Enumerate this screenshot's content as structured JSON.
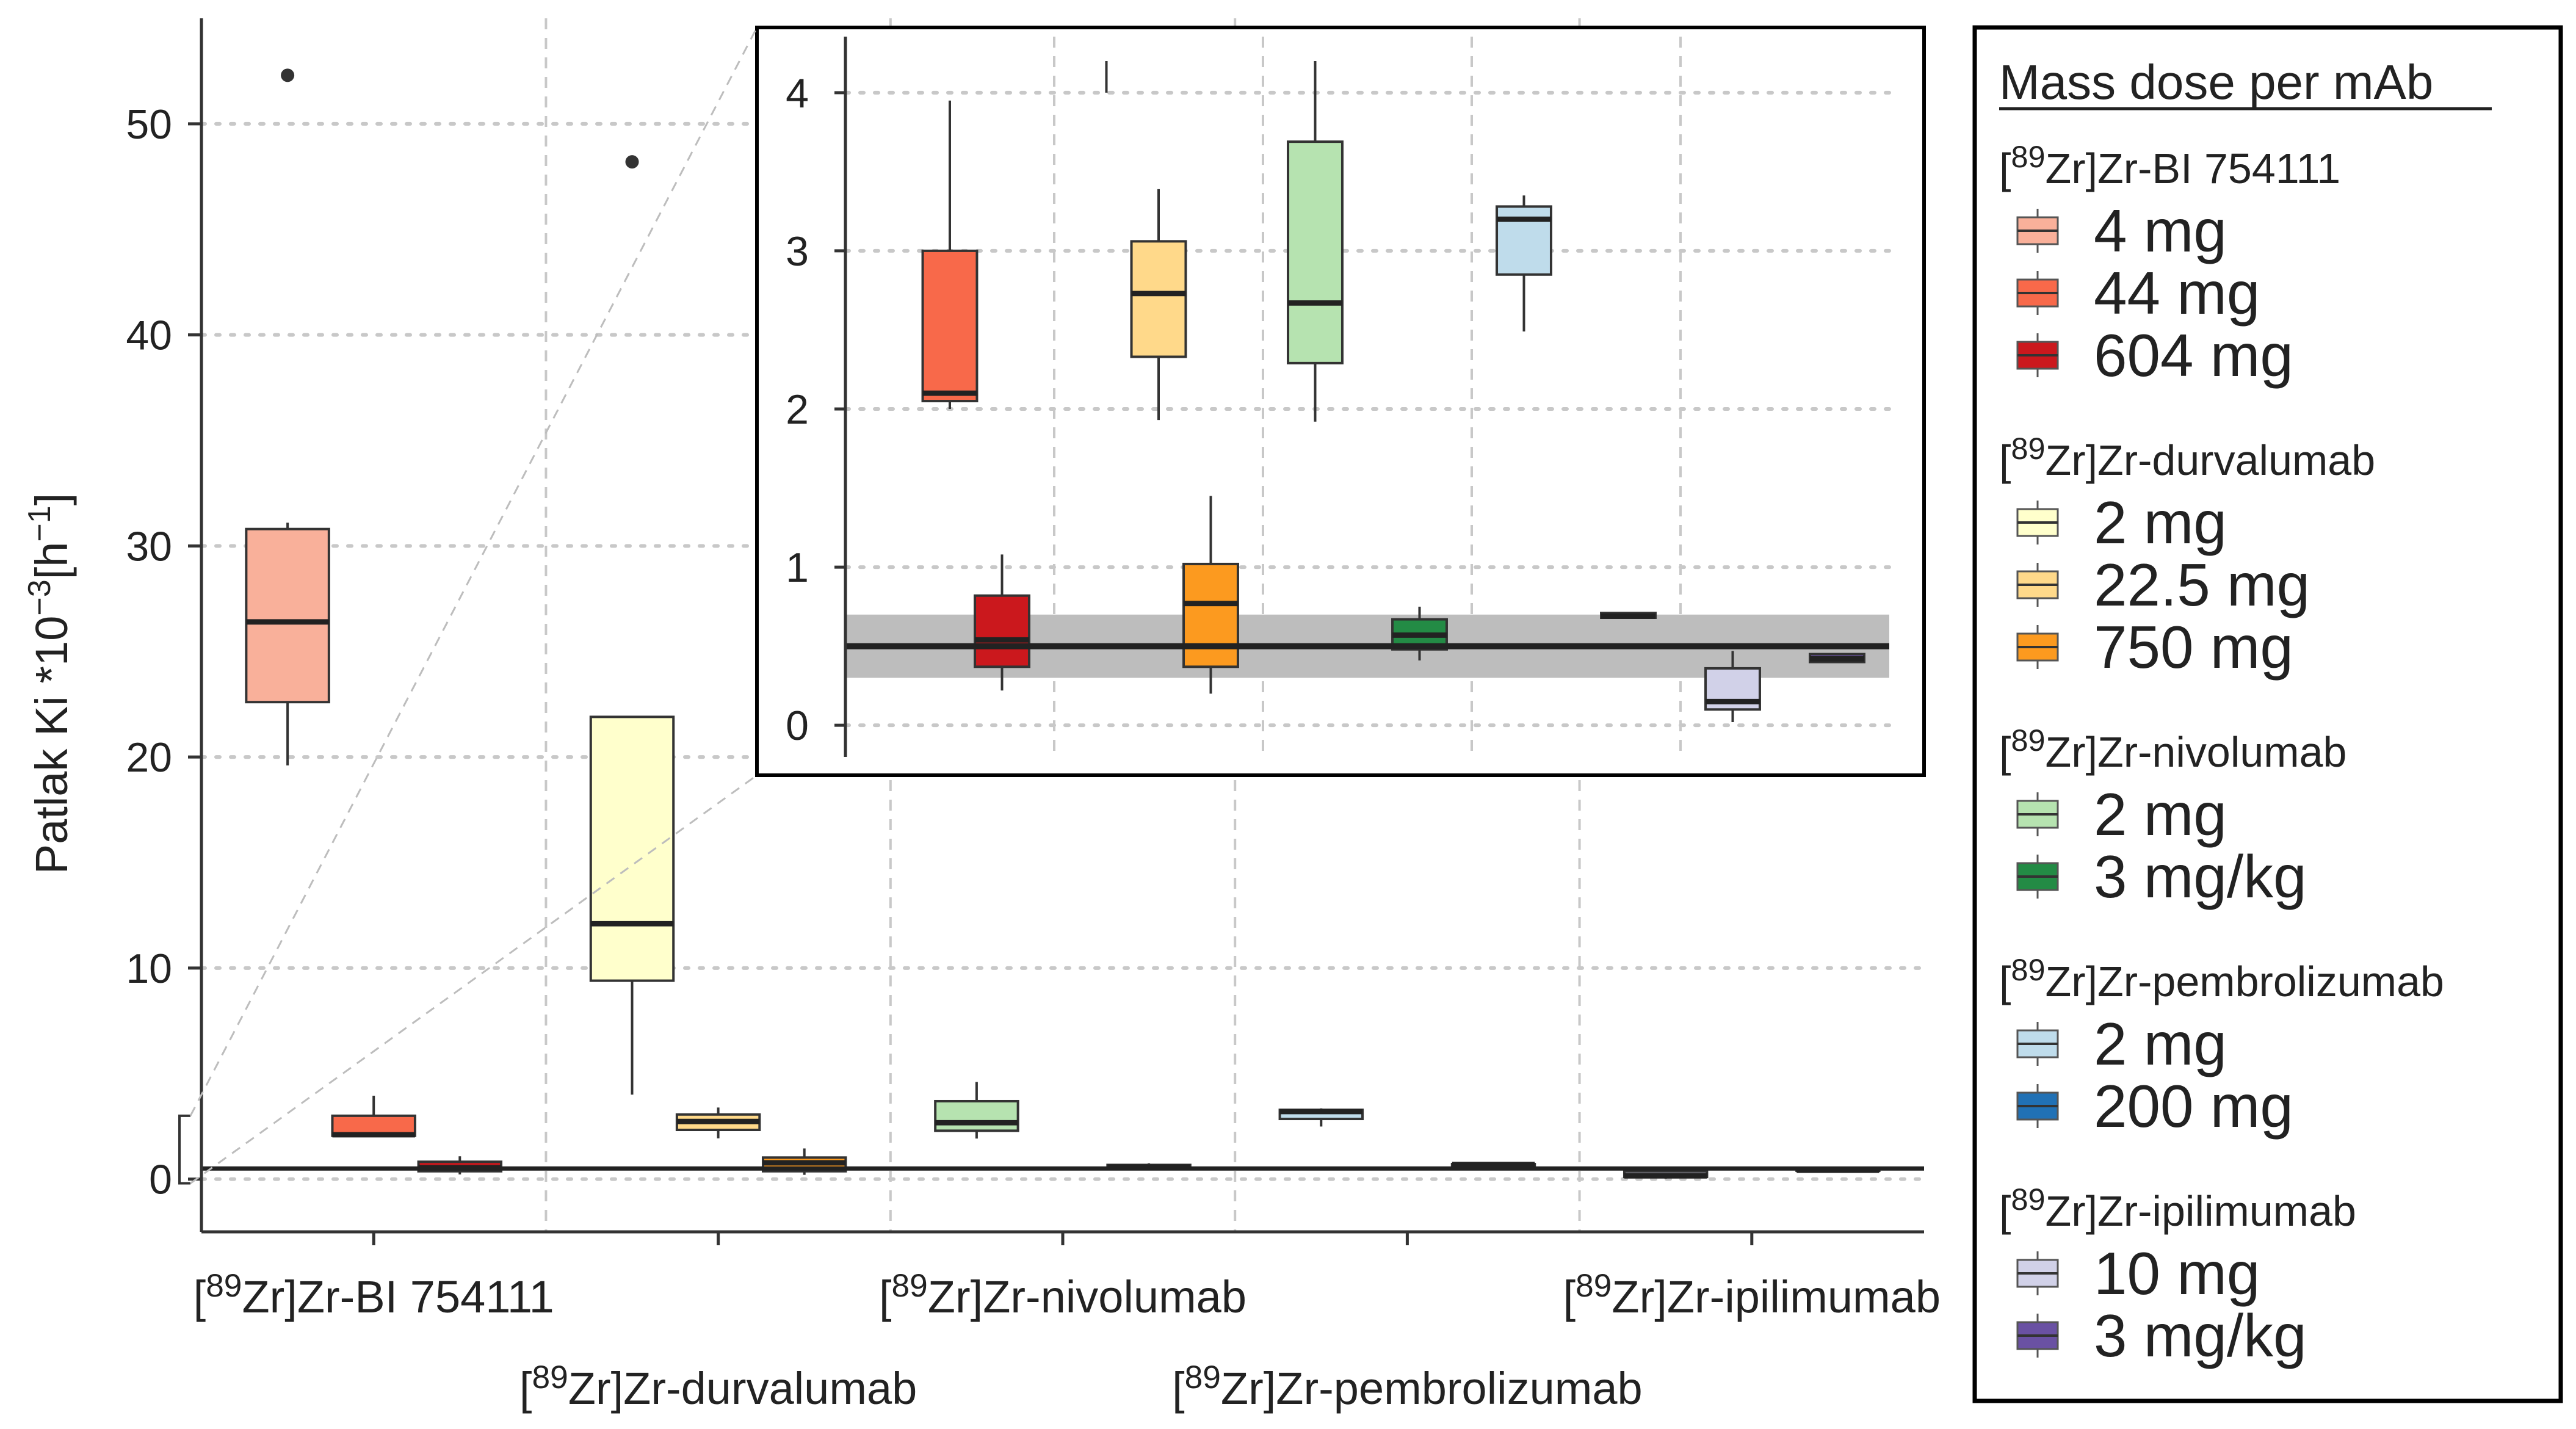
{
  "chart_data": {
    "type": "box",
    "ylabel": {
      "main": "Patlak Ki *10",
      "exp1": "−3",
      "bracket": "[h",
      "exp2": "−1",
      "close": "]"
    },
    "ylim": [
      -2.5,
      55
    ],
    "yticks": [
      0,
      10,
      20,
      30,
      40,
      50
    ],
    "grid": true,
    "categories": [
      {
        "sup": "89",
        "rest": "Zr]Zr-BI 754111"
      },
      {
        "sup": "89",
        "rest": "Zr]Zr-durvalumab"
      },
      {
        "sup": "89",
        "rest": "Zr]Zr-nivolumab"
      },
      {
        "sup": "89",
        "rest": "Zr]Zr-pembrolizumab"
      },
      {
        "sup": "89",
        "rest": "Zr]Zr-ipilimumab"
      }
    ],
    "reference_line": {
      "value": 0.5,
      "band": [
        0.3,
        0.7
      ]
    },
    "boxes": [
      {
        "label": "4 mg",
        "group": 0,
        "slot": 0,
        "color": "#F9B09A",
        "q1": 22.6,
        "median": 26.4,
        "q3": 30.8,
        "whisker_low": 19.6,
        "whisker_high": 31.1,
        "outliers": [
          52.3
        ]
      },
      {
        "label": "44 mg",
        "group": 0,
        "slot": 1,
        "color": "#F8694A",
        "q1": 2.05,
        "median": 2.1,
        "q3": 3.0,
        "whisker_low": 2.0,
        "whisker_high": 3.95,
        "outliers": []
      },
      {
        "label": "604 mg",
        "group": 0,
        "slot": 2,
        "color": "#CB181D",
        "q1": 0.37,
        "median": 0.54,
        "q3": 0.82,
        "whisker_low": 0.22,
        "whisker_high": 1.08,
        "outliers": []
      },
      {
        "label": "2 mg",
        "group": 1,
        "slot": 0,
        "color": "#FFFFCC",
        "q1": 9.4,
        "median": 12.1,
        "q3": 21.9,
        "whisker_low": 4.0,
        "whisker_high": 21.9,
        "outliers": [
          48.2
        ]
      },
      {
        "label": "22.5 mg",
        "group": 1,
        "slot": 1,
        "color": "#FFD98A",
        "q1": 2.33,
        "median": 2.73,
        "q3": 3.06,
        "whisker_low": 1.93,
        "whisker_high": 3.39,
        "outliers": []
      },
      {
        "label": "750 mg",
        "group": 1,
        "slot": 2,
        "color": "#FC9A1F",
        "q1": 0.37,
        "median": 0.77,
        "q3": 1.02,
        "whisker_low": 0.2,
        "whisker_high": 1.45,
        "outliers": []
      },
      {
        "label": "2 mg",
        "group": 2,
        "slot": 0,
        "color": "#B6E3B0",
        "q1": 2.29,
        "median": 2.67,
        "q3": 3.69,
        "whisker_low": 1.92,
        "whisker_high": 4.6,
        "outliers": []
      },
      {
        "label": "3 mg/kg",
        "group": 2,
        "slot": 1,
        "color": "#238B45",
        "q1": 0.48,
        "median": 0.57,
        "q3": 0.67,
        "whisker_low": 0.41,
        "whisker_high": 0.75,
        "outliers": []
      },
      {
        "label": "2 mg",
        "group": 3,
        "slot": 0,
        "color": "#BFDCEB",
        "q1": 2.85,
        "median": 3.2,
        "q3": 3.28,
        "whisker_low": 2.49,
        "whisker_high": 3.35,
        "outliers": []
      },
      {
        "label": "200 mg",
        "group": 3,
        "slot": 1,
        "color": "#2171B5",
        "q1": 0.68,
        "median": 0.69,
        "q3": 0.71,
        "whisker_low": 0.68,
        "whisker_high": 0.71,
        "outliers": []
      },
      {
        "label": "10 mg",
        "group": 4,
        "slot": 0,
        "color": "#D1D1E8",
        "q1": 0.1,
        "median": 0.15,
        "q3": 0.36,
        "whisker_low": 0.02,
        "whisker_high": 0.47,
        "outliers": []
      },
      {
        "label": "3 mg/kg",
        "group": 4,
        "slot": 1,
        "color": "#6A51A3",
        "q1": 0.4,
        "median": 0.42,
        "q3": 0.45,
        "whisker_low": 0.4,
        "whisker_high": 0.45,
        "outliers": []
      }
    ],
    "inset": {
      "ylim": [
        -0.2,
        4.2
      ],
      "yticks": [
        0,
        1,
        2,
        3,
        4
      ]
    },
    "legend": {
      "title": "Mass dose per mAb",
      "placement": "right",
      "groups": [
        {
          "sup": "89",
          "name": "Zr]Zr-BI 754111",
          "items": [
            {
              "label": "4 mg",
              "color": "#F9B09A"
            },
            {
              "label": "44 mg",
              "color": "#F8694A"
            },
            {
              "label": "604 mg",
              "color": "#CB181D"
            }
          ]
        },
        {
          "sup": "89",
          "name": "Zr]Zr-durvalumab",
          "items": [
            {
              "label": "2 mg",
              "color": "#FFFFCC"
            },
            {
              "label": "22.5 mg",
              "color": "#FFD98A"
            },
            {
              "label": "750 mg",
              "color": "#FC9A1F"
            }
          ]
        },
        {
          "sup": "89",
          "name": "Zr]Zr-nivolumab",
          "items": [
            {
              "label": "2 mg",
              "color": "#B6E3B0"
            },
            {
              "label": "3 mg/kg",
              "color": "#238B45"
            }
          ]
        },
        {
          "sup": "89",
          "name": "Zr]Zr-pembrolizumab",
          "items": [
            {
              "label": "2 mg",
              "color": "#BFDCEB"
            },
            {
              "label": "200 mg",
              "color": "#2171B5"
            }
          ]
        },
        {
          "sup": "89",
          "name": "Zr]Zr-ipilimumab",
          "items": [
            {
              "label": "10 mg",
              "color": "#D1D1E8"
            },
            {
              "label": "3 mg/kg",
              "color": "#6A51A3"
            }
          ]
        }
      ]
    }
  }
}
